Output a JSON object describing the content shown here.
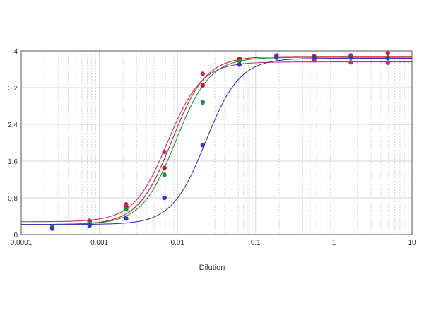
{
  "chart_data": {
    "type": "scatter",
    "xlabel": "Dilution",
    "ylabel": "",
    "xscale": "log",
    "xlim": [
      0.0001,
      10
    ],
    "ylim": [
      0,
      4
    ],
    "grid": true,
    "x_ticks": [
      {
        "value": 0.0001,
        "label": "0.0001"
      },
      {
        "value": 0.001,
        "label": "0.001"
      },
      {
        "value": 0.01,
        "label": "0.01"
      },
      {
        "value": 0.1,
        "label": "0.1"
      },
      {
        "value": 1,
        "label": "1"
      },
      {
        "value": 10,
        "label": "10"
      }
    ],
    "y_ticks": [
      {
        "value": 0,
        "label": "0"
      },
      {
        "value": 0.8,
        "label": "0.8"
      },
      {
        "value": 1.6,
        "label": "1.6"
      },
      {
        "value": 2.4,
        "label": "2.4"
      },
      {
        "value": 3.2,
        "label": "3.2"
      },
      {
        "value": 4,
        "label": "4"
      }
    ],
    "series": [
      {
        "color": "#c0307a",
        "curve": {
          "bottom": 0.28,
          "top": 3.76,
          "ec50": 0.0075,
          "hill": 2.0
        },
        "points": [
          {
            "x": 0.00025,
            "y": 0.17
          },
          {
            "x": 0.00075,
            "y": 0.3
          },
          {
            "x": 0.0022,
            "y": 0.66
          },
          {
            "x": 0.0068,
            "y": 1.8
          },
          {
            "x": 0.021,
            "y": 3.5
          },
          {
            "x": 0.062,
            "y": 3.8
          },
          {
            "x": 0.185,
            "y": 3.85
          },
          {
            "x": 0.56,
            "y": 3.8
          },
          {
            "x": 1.65,
            "y": 3.75
          },
          {
            "x": 4.9,
            "y": 3.74
          }
        ]
      },
      {
        "color": "#c02020",
        "curve": {
          "bottom": 0.22,
          "top": 3.88,
          "ec50": 0.0085,
          "hill": 2.0
        },
        "points": [
          {
            "x": 0.00025,
            "y": 0.15
          },
          {
            "x": 0.00075,
            "y": 0.28
          },
          {
            "x": 0.0022,
            "y": 0.6
          },
          {
            "x": 0.0068,
            "y": 1.45
          },
          {
            "x": 0.021,
            "y": 3.25
          },
          {
            "x": 0.062,
            "y": 3.83
          },
          {
            "x": 0.185,
            "y": 3.9
          },
          {
            "x": 0.56,
            "y": 3.88
          },
          {
            "x": 1.65,
            "y": 3.9
          },
          {
            "x": 4.9,
            "y": 3.95
          }
        ]
      },
      {
        "color": "#209040",
        "curve": {
          "bottom": 0.22,
          "top": 3.86,
          "ec50": 0.0095,
          "hill": 2.0
        },
        "points": [
          {
            "x": 0.00025,
            "y": 0.14
          },
          {
            "x": 0.00075,
            "y": 0.25
          },
          {
            "x": 0.0022,
            "y": 0.55
          },
          {
            "x": 0.0068,
            "y": 1.3
          },
          {
            "x": 0.021,
            "y": 2.88
          },
          {
            "x": 0.062,
            "y": 3.78
          },
          {
            "x": 0.185,
            "y": 3.86
          },
          {
            "x": 0.56,
            "y": 3.85
          },
          {
            "x": 1.65,
            "y": 3.86
          },
          {
            "x": 4.9,
            "y": 3.86
          }
        ]
      },
      {
        "color": "#3838b8",
        "curve": {
          "bottom": 0.22,
          "top": 3.84,
          "ec50": 0.023,
          "hill": 2.0
        },
        "points": [
          {
            "x": 0.00025,
            "y": 0.13
          },
          {
            "x": 0.00075,
            "y": 0.2
          },
          {
            "x": 0.0022,
            "y": 0.35
          },
          {
            "x": 0.0068,
            "y": 0.8
          },
          {
            "x": 0.021,
            "y": 1.95
          },
          {
            "x": 0.062,
            "y": 3.7
          },
          {
            "x": 0.185,
            "y": 3.86
          },
          {
            "x": 0.56,
            "y": 3.85
          },
          {
            "x": 1.65,
            "y": 3.85
          },
          {
            "x": 4.9,
            "y": 3.84
          }
        ]
      }
    ]
  }
}
